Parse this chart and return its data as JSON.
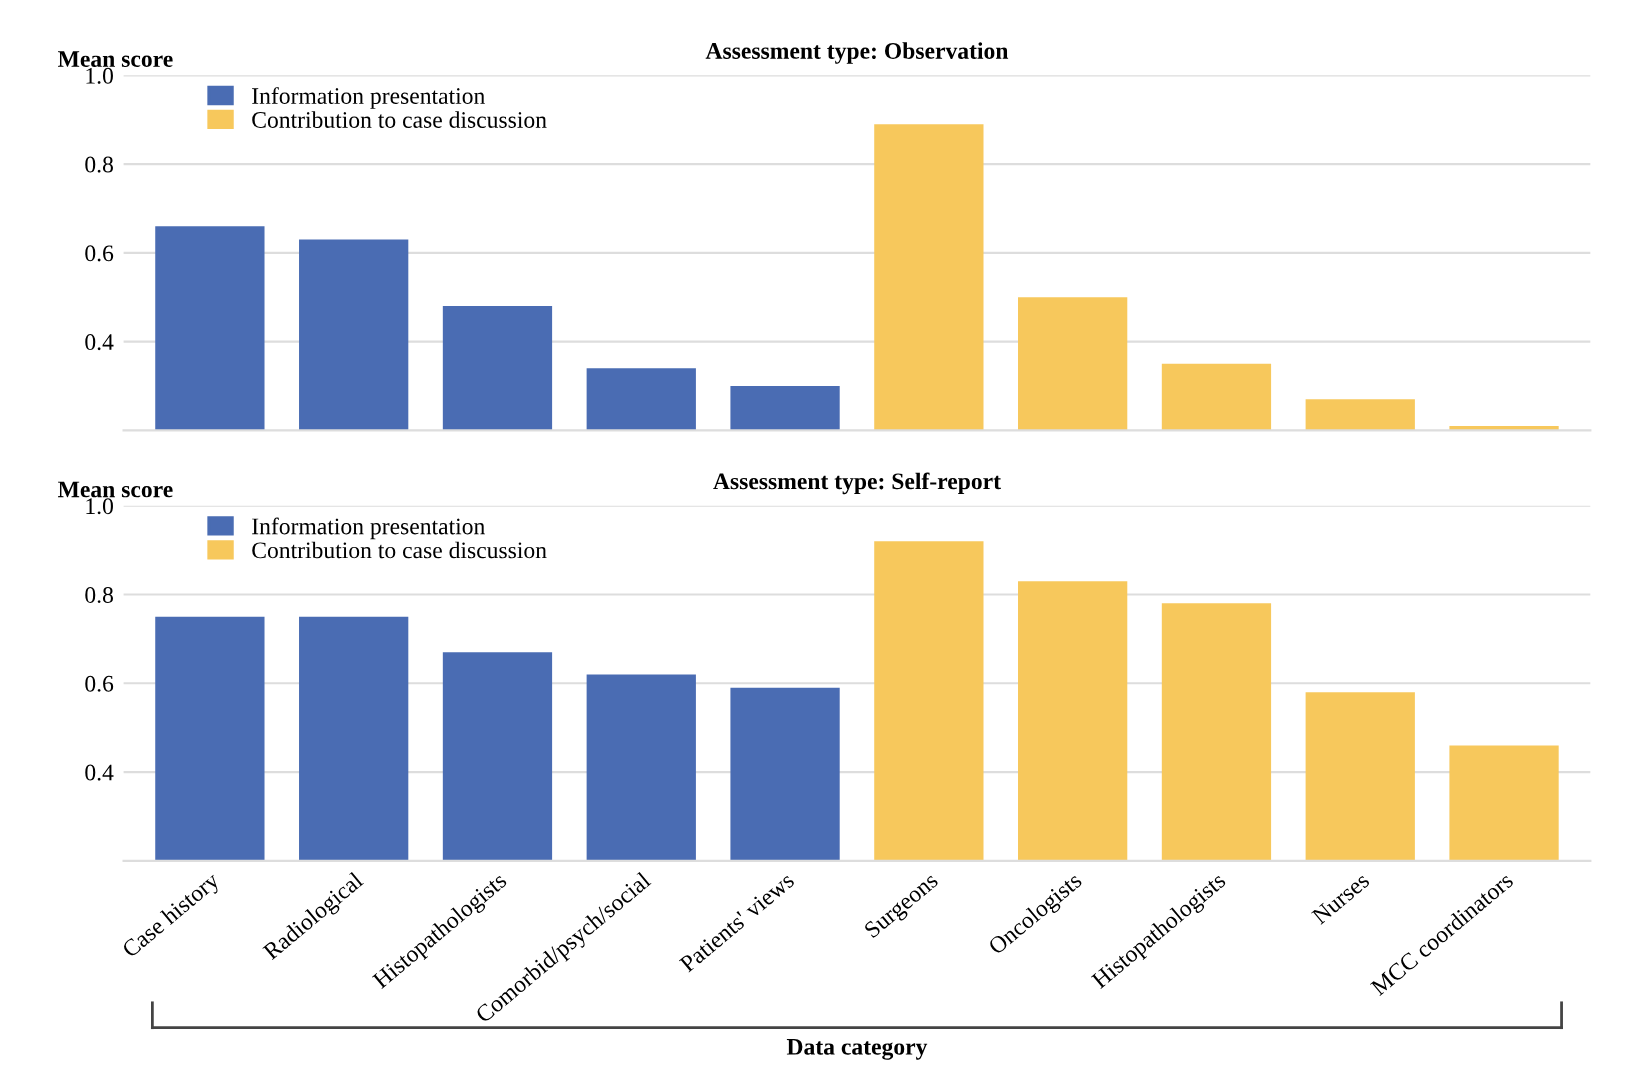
{
  "chart_data": [
    {
      "type": "bar",
      "title": "Assessment type: Observation",
      "ylabel": "Mean score",
      "categories": [
        null,
        null,
        null,
        null,
        null,
        null,
        null,
        null,
        null,
        null
      ],
      "series": [
        {
          "name": "Information presentation",
          "color": "#4a6cb3",
          "values": [
            0.66,
            0.63,
            0.48,
            0.34,
            0.3,
            null,
            null,
            null,
            null,
            null
          ]
        },
        {
          "name": "Contribution to case discussion",
          "color": "#f7c85c",
          "values": [
            null,
            null,
            null,
            null,
            null,
            0.89,
            0.5,
            0.35,
            0.27,
            0.21
          ]
        }
      ],
      "ylim": [
        0.2,
        1.0
      ],
      "yticks": [
        0.4,
        0.6,
        0.8,
        {
          "value": 1.0,
          "label": "1.0"
        }
      ],
      "grid": "y",
      "legend": "top left",
      "tick_labels": "y"
    },
    {
      "type": "bar",
      "title": "Assessment type: Self-report",
      "ylabel": "Mean score",
      "xlabel": "Data category",
      "categories": [
        "Case history",
        "Radiological",
        "Histopathologists",
        "Comorbid/psych/social",
        "Patients' views",
        "Surgeons",
        "Oncologists",
        "Histopathologists",
        "Nurses",
        "MCC coordinators"
      ],
      "series": [
        {
          "name": "Information presentation",
          "color": "#4a6cb3",
          "values": [
            0.75,
            0.75,
            0.67,
            0.62,
            0.59,
            null,
            null,
            null,
            null,
            null
          ]
        },
        {
          "name": "Contribution to case discussion",
          "color": "#f7c85c",
          "values": [
            null,
            null,
            null,
            null,
            null,
            0.92,
            0.83,
            0.78,
            0.58,
            0.46
          ]
        }
      ],
      "ylim": [
        0.2,
        1.0
      ],
      "yticks": [
        0.4,
        0.6,
        0.8,
        {
          "value": 1.0,
          "label": "1.0"
        }
      ],
      "grid": "y",
      "legend": "top left"
    }
  ]
}
